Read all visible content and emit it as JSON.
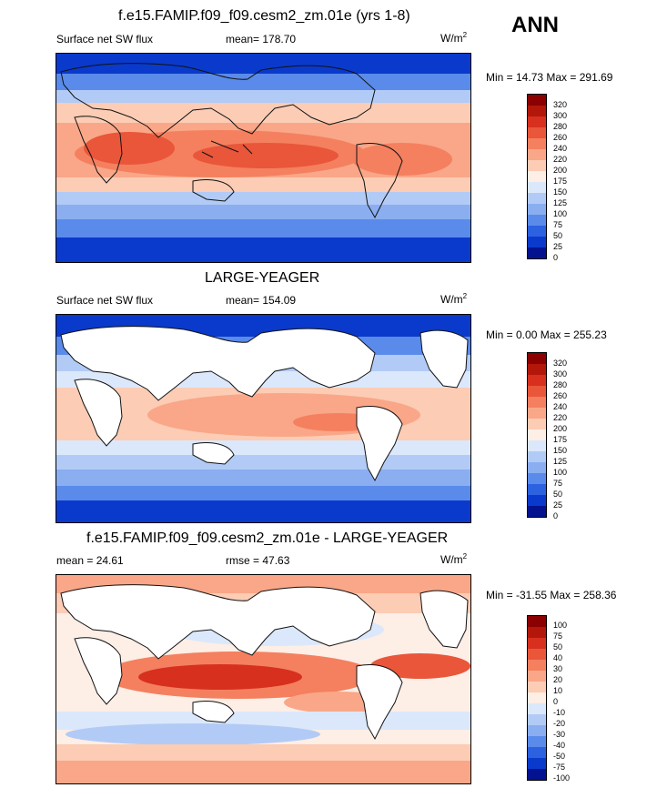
{
  "season": "ANN",
  "panels": [
    {
      "title": "f.e15.FAMIP.f09_f09.cesm2_zm.01e (yrs 1-8)",
      "left_label": "Surface net SW flux",
      "center_label": "mean= 178.70",
      "units": "W/m",
      "units_sup": "2",
      "minmax": "Min =  14.73 Max = 291.69",
      "levels": [
        "320",
        "300",
        "280",
        "260",
        "240",
        "220",
        "200",
        "175",
        "150",
        "125",
        "100",
        "75",
        "50",
        "25",
        "0"
      ]
    },
    {
      "title": "LARGE-YEAGER",
      "left_label": "Surface net SW flux",
      "center_label": "mean= 154.09",
      "units": "W/m",
      "units_sup": "2",
      "minmax": "Min =   0.00 Max = 255.23",
      "levels": [
        "320",
        "300",
        "280",
        "260",
        "240",
        "220",
        "200",
        "175",
        "150",
        "125",
        "100",
        "75",
        "50",
        "25",
        "0"
      ]
    },
    {
      "title": "f.e15.FAMIP.f09_f09.cesm2_zm.01e - LARGE-YEAGER",
      "left_label": "mean =  24.61",
      "center_label": "rmse =  47.63",
      "units": "W/m",
      "units_sup": "2",
      "minmax": "Min = -31.55 Max = 258.36",
      "levels": [
        "100",
        "75",
        "50",
        "40",
        "30",
        "20",
        "10",
        "0",
        "-10",
        "-20",
        "-30",
        "-40",
        "-50",
        "-75",
        "-100"
      ]
    }
  ],
  "colors": {
    "abs_scale": [
      "#8b0000",
      "#b2170a",
      "#d7301f",
      "#e9563a",
      "#f4805f",
      "#f9a788",
      "#fcccb5",
      "#fdeee6",
      "#dbe8fb",
      "#b2cbf6",
      "#8aaef0",
      "#5a8bea",
      "#2c61e0",
      "#0a3acb",
      "#04128f"
    ],
    "land": "#ffffff",
    "coast": "#111111"
  }
}
